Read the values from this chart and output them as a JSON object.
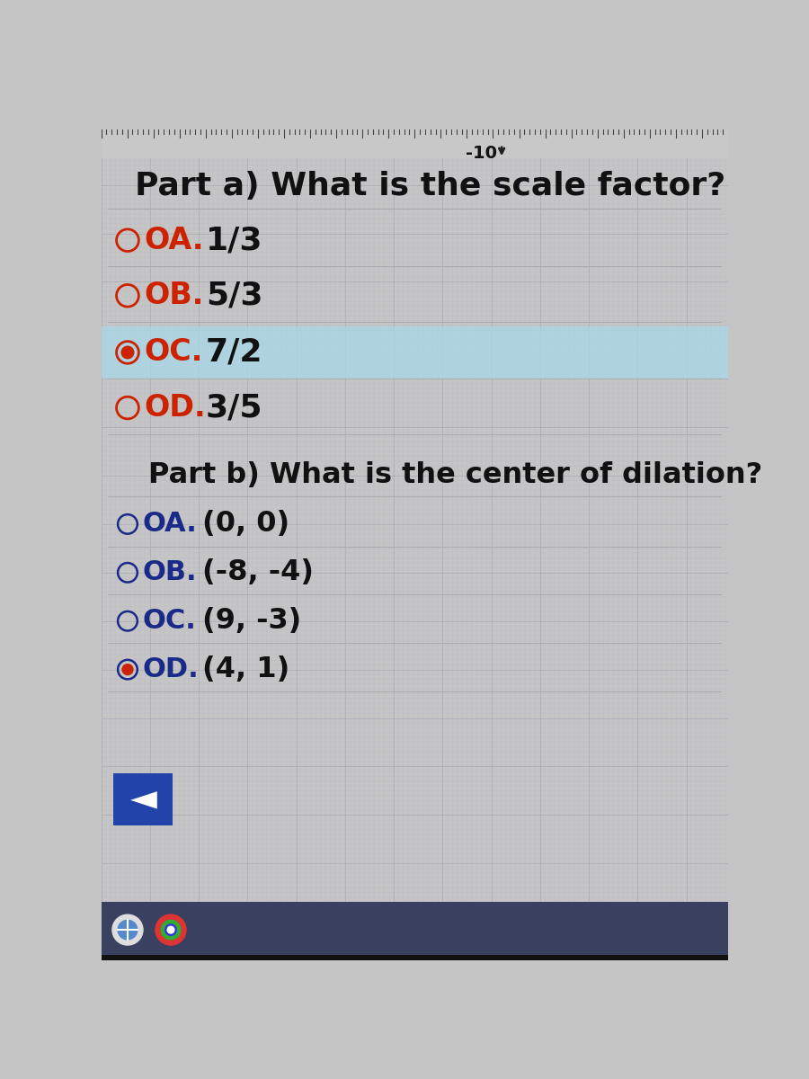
{
  "bg_color": "#c5c5c5",
  "grid_line_color": "#b8b8c8",
  "grid_line_color2": "#9898a8",
  "top_ruler_color": "#b0b0b0",
  "top_number": "-10",
  "part_a_question": "Part a) What is the scale factor?",
  "part_a_options": [
    {
      "label": "OA.",
      "text": "1/3",
      "selected": false
    },
    {
      "label": "OB.",
      "text": "5/3",
      "selected": false
    },
    {
      "label": "OC.",
      "text": "7/2",
      "selected": true
    },
    {
      "label": "OD.",
      "text": "3/5",
      "selected": false
    }
  ],
  "part_b_question": "Part b) What is the center of dilation?",
  "part_b_options": [
    {
      "label": "OA.",
      "text": "(0, 0)",
      "selected": false
    },
    {
      "label": "OB.",
      "text": "(-8, -4)",
      "selected": false
    },
    {
      "label": "OC.",
      "text": "(9, -3)",
      "selected": false
    },
    {
      "label": "OD.",
      "text": "(4, 1)",
      "selected": true
    }
  ],
  "highlight_color_a": "#a8d8e8",
  "selected_dot_color": "#cc2200",
  "part_a_label_color": "#cc2200",
  "part_b_label_color": "#1a2a88",
  "text_color": "#111111",
  "back_btn_color": "#2244aa",
  "taskbar_color": "#3a3a5a",
  "taskbar_icon_color": "#6688cc"
}
